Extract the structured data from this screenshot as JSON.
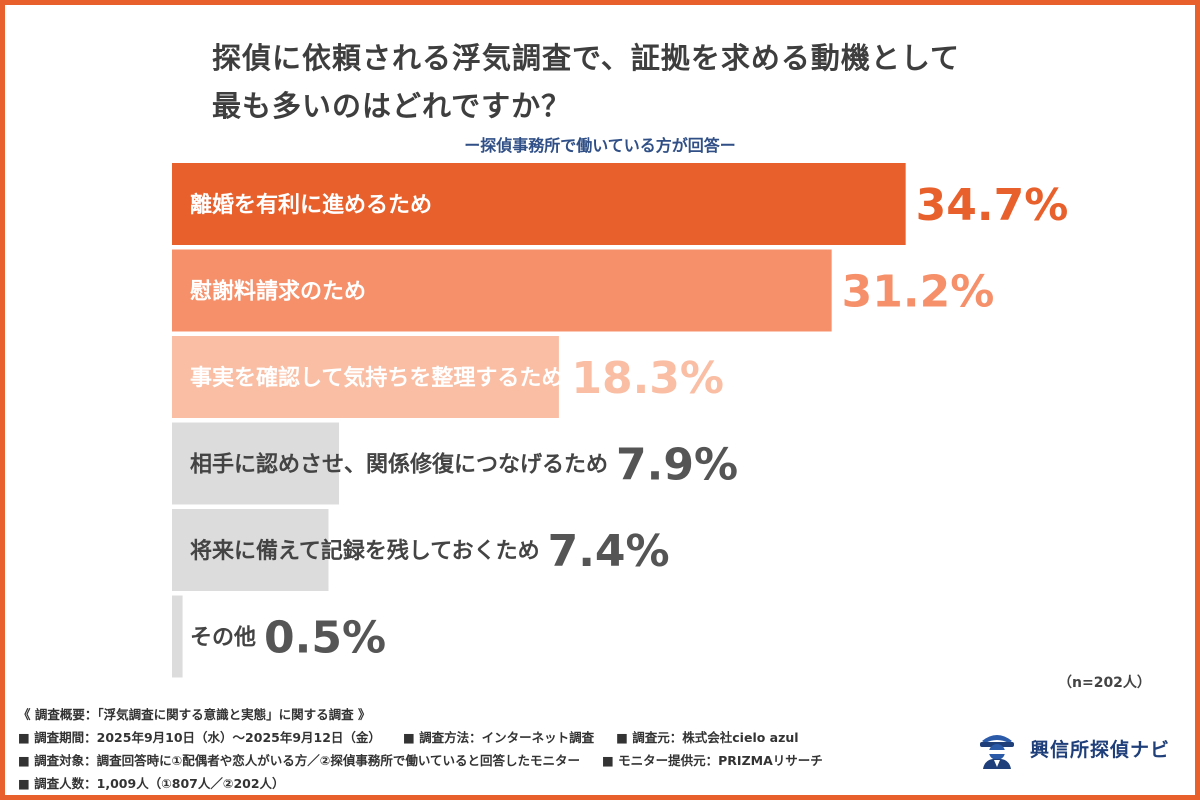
{
  "title_lines": [
    "探偵に依頼される浮気調査で、証拠を求める動機として",
    "最も多いのはどれですか？"
  ],
  "subtitle": "ー探偵事務所で働いている方が回答ー",
  "colors": {
    "border": "#e8602c",
    "title": "#3e3e3e",
    "subtitle": "#2f4f86",
    "gray_bar": "#dcdcdc",
    "gray_value": "#555555",
    "gray_label": "#444444"
  },
  "chart_data": {
    "type": "bar",
    "orientation": "horizontal",
    "categories": [
      "離婚を有利に進めるため",
      "慰謝料請求のため",
      "事実を確認して気持ちを整理するため",
      "相手に認めさせ、関係修復につなげるため",
      "将来に備えて記録を残しておくため",
      "その他"
    ],
    "values": [
      34.7,
      31.2,
      18.3,
      7.9,
      7.4,
      0.5
    ],
    "value_labels": [
      "34.7%",
      "31.2%",
      "18.3%",
      "7.9%",
      "7.4%",
      "0.5%"
    ],
    "bar_colors": [
      "#e8602c",
      "#f5906a",
      "#f9bea4",
      "#dcdcdc",
      "#dcdcdc",
      "#dcdcdc"
    ],
    "value_colors": [
      "#e8602c",
      "#f5906a",
      "#f9bea4",
      "#555555",
      "#555555",
      "#555555"
    ],
    "label_colors": [
      "#ffffff",
      "#ffffff",
      "#ffffff",
      "#444444",
      "#444444",
      "#444444"
    ],
    "xlim": [
      0,
      35
    ]
  },
  "n_note": "（n=202人）",
  "footer": {
    "overview": "《 調査概要：「浮気調査に関する意識と実態」に関する調査 》",
    "period": "■ 調査期間：2025年9月10日（水）〜2025年9月12日（金）",
    "method": "■ 調査方法：インターネット調査",
    "source": "■ 調査元：株式会社cielo azul",
    "target": "■ 調査対象：調査回答時に①配偶者や恋人がいる方／②探偵事務所で働いていると回答したモニター",
    "provider": "■ モニター提供元：PRIZMAリサーチ",
    "count": "■ 調査人数：1,009人（①807人／②202人）"
  },
  "logo": {
    "icon": "detective-icon",
    "text": "興信所探偵ナビ"
  }
}
